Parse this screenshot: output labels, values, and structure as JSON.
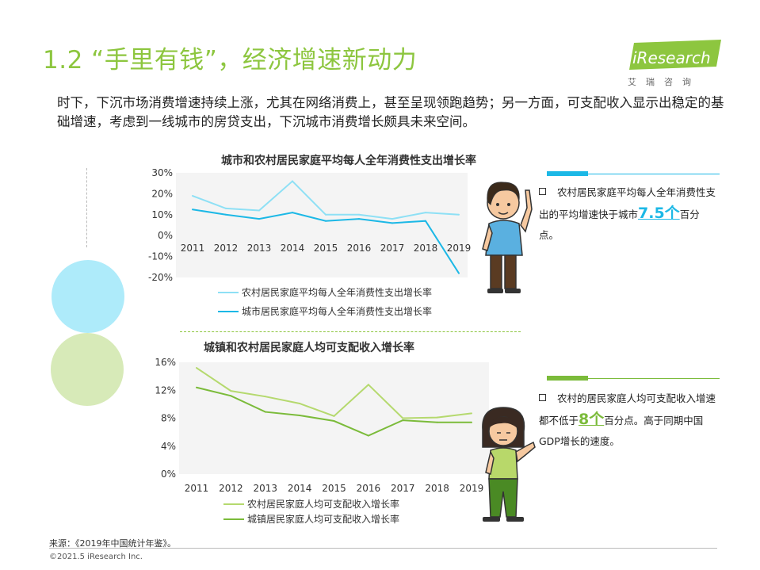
{
  "header": {
    "title": "1.2 “手里有钱”，经济增速新动力",
    "logo_text": "iResearch",
    "logo_cn": "艾瑞咨询"
  },
  "intro": "时下，下沉市场消费增速持续上涨，尤其在网络消费上，甚至呈现领跑趋势；另一方面，可支配收入显示出稳定的基础增速，考虑到一线城市的房贷支出，下沉城市消费增长颇具未来空间。",
  "colors": {
    "accent_green": "#8dc63f",
    "rural_consumption": "#8ee0f5",
    "urban_consumption": "#1cb8e6",
    "rural_income": "#b5d96e",
    "urban_income": "#7bbb3a"
  },
  "chart_data": [
    {
      "type": "line",
      "title": "城市和农村居民家庭平均每人全年消费性支出增长率",
      "x": [
        "2011",
        "2012",
        "2013",
        "2014",
        "2015",
        "2016",
        "2017",
        "2018",
        "2019"
      ],
      "series": [
        {
          "name": "农村居民家庭平均每人全年消费性支出增长率",
          "values": [
            19,
            13,
            12,
            26,
            10,
            10,
            8,
            11,
            10
          ]
        },
        {
          "name": "城市居民家庭平均每人全年消费性支出增长率",
          "values": [
            12.5,
            10,
            8,
            11,
            7,
            8,
            6,
            7,
            -18
          ]
        }
      ],
      "yticks": [
        "30%",
        "20%",
        "10%",
        "0%",
        "-10%",
        "-20%"
      ],
      "ylim": [
        -20,
        30
      ],
      "xlabel": "",
      "ylabel": "",
      "grid": false,
      "legend": "bottom"
    },
    {
      "type": "line",
      "title": "城镇和农村居民家庭人均可支配收入增长率",
      "x": [
        "2011",
        "2012",
        "2013",
        "2014",
        "2015",
        "2016",
        "2017",
        "2018",
        "2019"
      ],
      "series": [
        {
          "name": "农村居民家庭人均可支配收入增长率",
          "values": [
            15.2,
            11.9,
            11.1,
            10.1,
            8.3,
            12.8,
            8.0,
            8.1,
            8.7
          ]
        },
        {
          "name": "城镇居民家庭人均可支配收入增长率",
          "values": [
            12.4,
            11.2,
            8.9,
            8.4,
            7.6,
            5.5,
            7.7,
            7.4,
            7.4
          ]
        }
      ],
      "yticks": [
        "16%",
        "12%",
        "8%",
        "4%",
        "0%"
      ],
      "ylim": [
        0,
        16
      ],
      "xlabel": "",
      "ylabel": "",
      "grid": false,
      "legend": "bottom"
    }
  ],
  "notes": {
    "note1": {
      "before": "农村居民家庭平均每人全年消费性支出的平均增速快于城市",
      "highlight": "7.5个",
      "after": "百分点。"
    },
    "note2": {
      "before": "农村的居民家庭人均可支配收入增速都不低于",
      "highlight": "8个",
      "after": "百分点。高于同期中国GDP增长的速度。"
    }
  },
  "footer": {
    "source": "来源：《2019年中国统计年鉴》。",
    "copyright": "©2021.5 iResearch Inc."
  }
}
